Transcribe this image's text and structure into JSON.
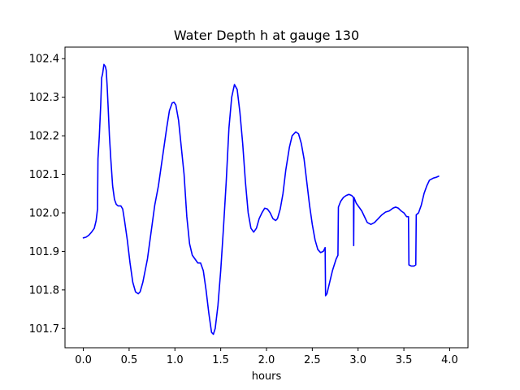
{
  "chart_data": {
    "type": "line",
    "title": "Water Depth h at gauge 130",
    "xlabel": "hours",
    "ylabel": "",
    "xlim": [
      -0.2,
      4.2
    ],
    "ylim": [
      101.65,
      102.43
    ],
    "x_ticks": [
      0.0,
      0.5,
      1.0,
      1.5,
      2.0,
      2.5,
      3.0,
      3.5,
      4.0
    ],
    "x_tick_labels": [
      "0.0",
      "0.5",
      "1.0",
      "1.5",
      "2.0",
      "2.5",
      "3.0",
      "3.5",
      "4.0"
    ],
    "y_ticks": [
      101.7,
      101.8,
      101.9,
      102.0,
      102.1,
      102.2,
      102.3,
      102.4
    ],
    "y_tick_labels": [
      "101.7",
      "101.8",
      "101.9",
      "102.0",
      "102.1",
      "102.2",
      "102.3",
      "102.4"
    ],
    "grid": false,
    "series": [
      {
        "color": "#0000ff",
        "points": [
          [
            0.0,
            101.935
          ],
          [
            0.03,
            101.937
          ],
          [
            0.06,
            101.942
          ],
          [
            0.09,
            101.95
          ],
          [
            0.12,
            101.96
          ],
          [
            0.14,
            101.98
          ],
          [
            0.155,
            102.01
          ],
          [
            0.16,
            102.14
          ],
          [
            0.175,
            102.2
          ],
          [
            0.19,
            102.28
          ],
          [
            0.2,
            102.35
          ],
          [
            0.21,
            102.36
          ],
          [
            0.225,
            102.385
          ],
          [
            0.24,
            102.38
          ],
          [
            0.25,
            102.37
          ],
          [
            0.26,
            102.33
          ],
          [
            0.27,
            102.28
          ],
          [
            0.285,
            102.2
          ],
          [
            0.3,
            102.14
          ],
          [
            0.32,
            102.07
          ],
          [
            0.34,
            102.035
          ],
          [
            0.36,
            102.022
          ],
          [
            0.38,
            102.018
          ],
          [
            0.41,
            102.018
          ],
          [
            0.43,
            102.01
          ],
          [
            0.45,
            101.98
          ],
          [
            0.48,
            101.93
          ],
          [
            0.51,
            101.87
          ],
          [
            0.54,
            101.82
          ],
          [
            0.57,
            101.795
          ],
          [
            0.6,
            101.79
          ],
          [
            0.62,
            101.795
          ],
          [
            0.65,
            101.82
          ],
          [
            0.7,
            101.88
          ],
          [
            0.74,
            101.95
          ],
          [
            0.78,
            102.02
          ],
          [
            0.82,
            102.07
          ],
          [
            0.85,
            102.12
          ],
          [
            0.88,
            102.17
          ],
          [
            0.91,
            102.22
          ],
          [
            0.94,
            102.265
          ],
          [
            0.97,
            102.285
          ],
          [
            0.99,
            102.287
          ],
          [
            1.01,
            102.28
          ],
          [
            1.04,
            102.24
          ],
          [
            1.07,
            102.17
          ],
          [
            1.1,
            102.1
          ],
          [
            1.13,
            101.99
          ],
          [
            1.16,
            101.92
          ],
          [
            1.19,
            101.89
          ],
          [
            1.22,
            101.88
          ],
          [
            1.25,
            101.87
          ],
          [
            1.28,
            101.87
          ],
          [
            1.31,
            101.85
          ],
          [
            1.34,
            101.8
          ],
          [
            1.37,
            101.74
          ],
          [
            1.4,
            101.69
          ],
          [
            1.42,
            101.685
          ],
          [
            1.44,
            101.7
          ],
          [
            1.47,
            101.76
          ],
          [
            1.5,
            101.85
          ],
          [
            1.53,
            101.96
          ],
          [
            1.56,
            102.08
          ],
          [
            1.59,
            102.22
          ],
          [
            1.62,
            102.3
          ],
          [
            1.65,
            102.333
          ],
          [
            1.68,
            102.32
          ],
          [
            1.71,
            102.26
          ],
          [
            1.74,
            102.18
          ],
          [
            1.77,
            102.08
          ],
          [
            1.8,
            102.0
          ],
          [
            1.83,
            101.96
          ],
          [
            1.86,
            101.95
          ],
          [
            1.89,
            101.96
          ],
          [
            1.92,
            101.985
          ],
          [
            1.95,
            102.0
          ],
          [
            1.98,
            102.012
          ],
          [
            2.01,
            102.01
          ],
          [
            2.04,
            102.0
          ],
          [
            2.07,
            101.985
          ],
          [
            2.1,
            101.98
          ],
          [
            2.12,
            101.985
          ],
          [
            2.15,
            102.01
          ],
          [
            2.18,
            102.05
          ],
          [
            2.21,
            102.11
          ],
          [
            2.25,
            102.17
          ],
          [
            2.28,
            102.2
          ],
          [
            2.32,
            102.21
          ],
          [
            2.35,
            102.205
          ],
          [
            2.38,
            102.18
          ],
          [
            2.41,
            102.14
          ],
          [
            2.44,
            102.08
          ],
          [
            2.47,
            102.02
          ],
          [
            2.5,
            101.97
          ],
          [
            2.53,
            101.93
          ],
          [
            2.56,
            101.905
          ],
          [
            2.59,
            101.897
          ],
          [
            2.62,
            101.9
          ],
          [
            2.64,
            101.91
          ],
          [
            2.645,
            101.785
          ],
          [
            2.66,
            101.79
          ],
          [
            2.69,
            101.82
          ],
          [
            2.72,
            101.85
          ],
          [
            2.76,
            101.88
          ],
          [
            2.78,
            101.89
          ],
          [
            2.785,
            102.015
          ],
          [
            2.81,
            102.03
          ],
          [
            2.84,
            102.04
          ],
          [
            2.87,
            102.045
          ],
          [
            2.9,
            102.048
          ],
          [
            2.93,
            102.045
          ],
          [
            2.95,
            102.04
          ],
          [
            2.952,
            101.915
          ],
          [
            2.955,
            102.04
          ],
          [
            2.98,
            102.025
          ],
          [
            3.01,
            102.015
          ],
          [
            3.04,
            102.005
          ],
          [
            3.07,
            101.99
          ],
          [
            3.1,
            101.975
          ],
          [
            3.14,
            101.97
          ],
          [
            3.18,
            101.975
          ],
          [
            3.22,
            101.985
          ],
          [
            3.26,
            101.995
          ],
          [
            3.3,
            102.002
          ],
          [
            3.34,
            102.005
          ],
          [
            3.38,
            102.012
          ],
          [
            3.41,
            102.015
          ],
          [
            3.44,
            102.012
          ],
          [
            3.47,
            102.005
          ],
          [
            3.5,
            102.0
          ],
          [
            3.53,
            101.99
          ],
          [
            3.55,
            101.99
          ],
          [
            3.555,
            101.865
          ],
          [
            3.58,
            101.862
          ],
          [
            3.61,
            101.862
          ],
          [
            3.63,
            101.865
          ],
          [
            3.635,
            101.995
          ],
          [
            3.66,
            102.0
          ],
          [
            3.69,
            102.02
          ],
          [
            3.72,
            102.05
          ],
          [
            3.75,
            102.07
          ],
          [
            3.78,
            102.085
          ],
          [
            3.82,
            102.09
          ],
          [
            3.85,
            102.092
          ],
          [
            3.88,
            102.095
          ]
        ]
      }
    ]
  }
}
